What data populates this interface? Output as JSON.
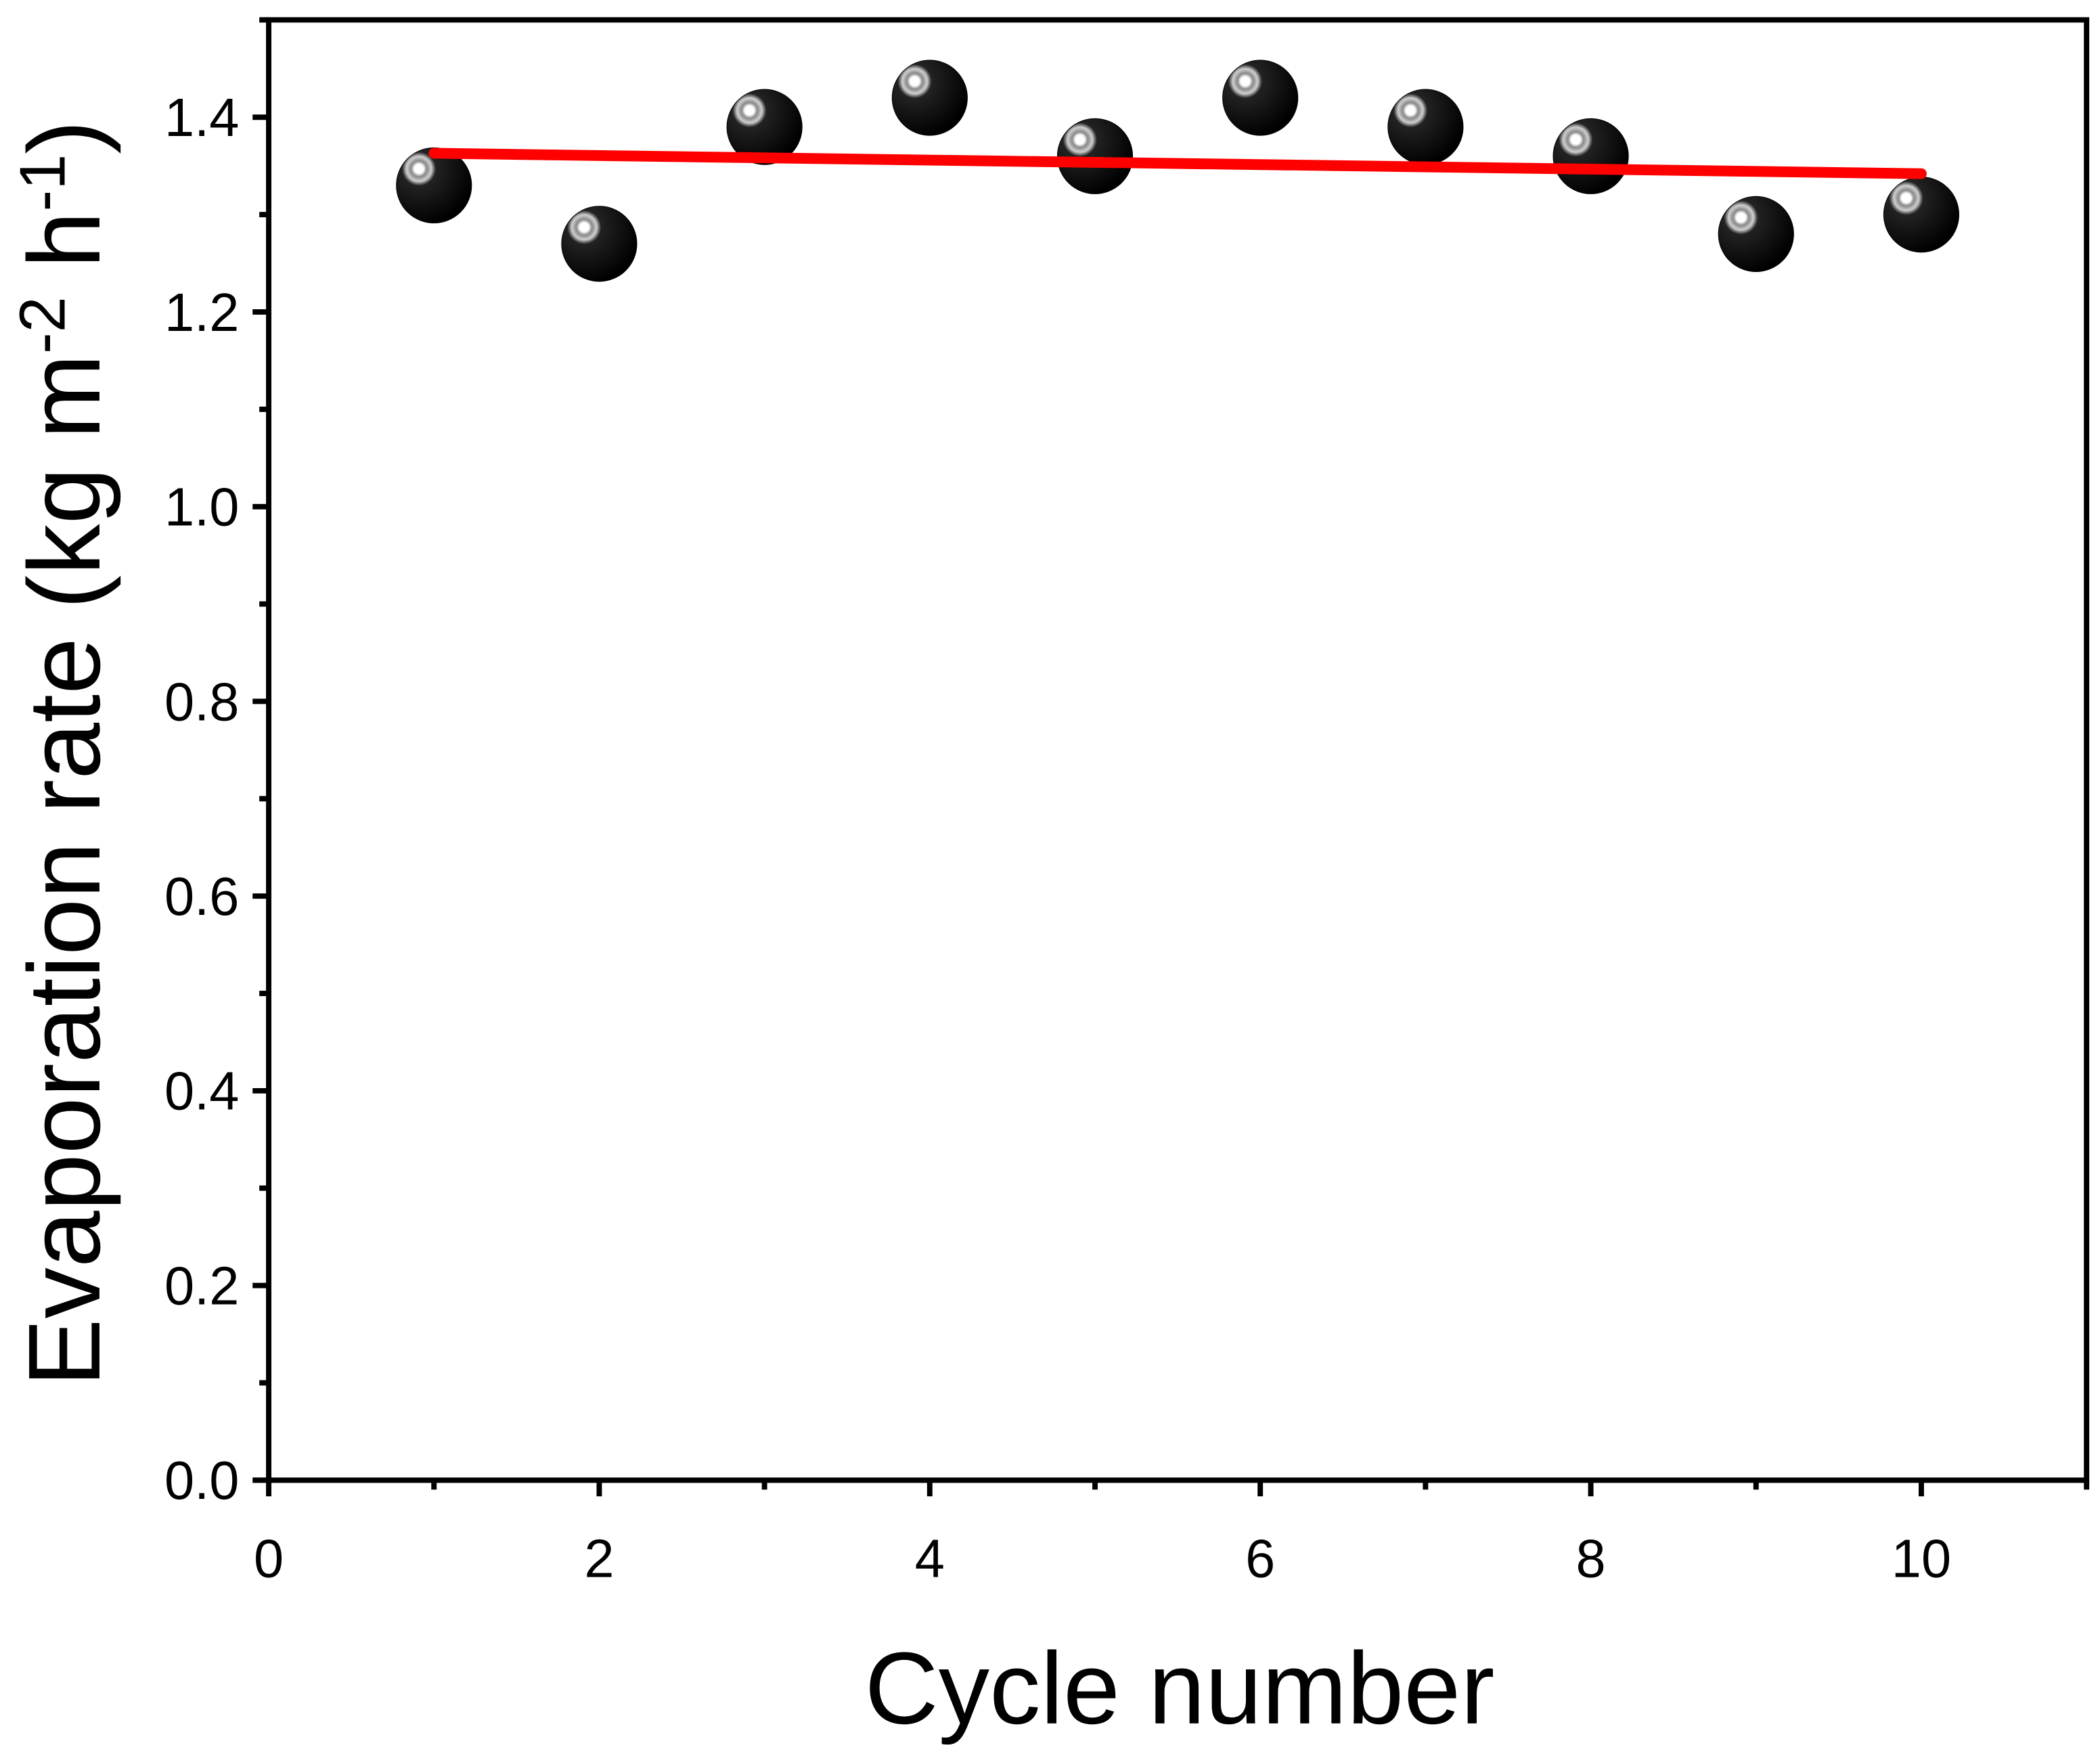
{
  "chart_data": {
    "type": "scatter",
    "xlabel": "Cycle number",
    "ylabel_parts": [
      "Evaporation rate (kg m",
      "-2",
      " h",
      "-1",
      ")"
    ],
    "x": [
      1,
      2,
      3,
      4,
      5,
      6,
      7,
      8,
      9,
      10
    ],
    "series": [
      {
        "color": "#000000",
        "values": [
          1.33,
          1.27,
          1.39,
          1.42,
          1.36,
          1.42,
          1.39,
          1.36,
          1.28,
          1.3
        ]
      }
    ],
    "fit": {
      "color": "#ff0000",
      "x": [
        1,
        10
      ],
      "values": [
        1.363,
        1.342
      ]
    },
    "xlim": [
      0,
      11
    ],
    "ylim": [
      0,
      1.5
    ],
    "xticks": [
      0,
      2,
      4,
      6,
      8,
      10
    ],
    "xminorticks": [
      1,
      3,
      5,
      7,
      9,
      11
    ],
    "yticks": [
      {
        "value": 0,
        "label": "0.0"
      },
      {
        "value": 0.2,
        "label": "0.2"
      },
      {
        "value": 0.4,
        "label": "0.4"
      },
      {
        "value": 0.6,
        "label": "0.6"
      },
      {
        "value": 0.8,
        "label": "0.8"
      },
      {
        "value": 1.0,
        "label": "1.0"
      },
      {
        "value": 1.2,
        "label": "1.2"
      },
      {
        "value": 1.4,
        "label": "1.4"
      }
    ],
    "yminorticks": [
      0.1,
      0.3,
      0.5,
      0.7,
      0.9,
      1.1,
      1.3,
      1.5
    ]
  }
}
